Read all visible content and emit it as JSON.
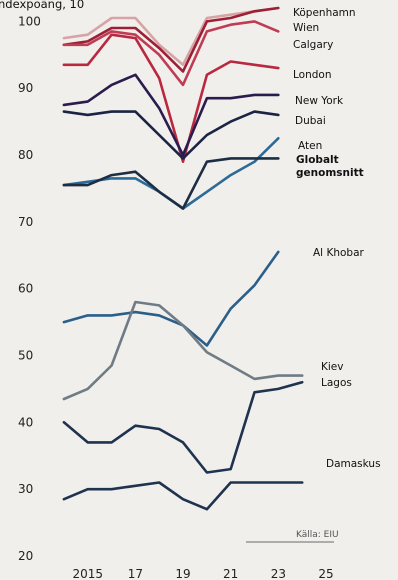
{
  "header_fragment": "ndexpoäng, 10",
  "source": "Källa: EIU",
  "chart_data": {
    "type": "line",
    "ylabel": "ndexpoäng, 10",
    "ylim": [
      20,
      102
    ],
    "xlim": [
      2013.5,
      2025
    ],
    "yticks": [
      20,
      30,
      40,
      50,
      60,
      70,
      80,
      90,
      100
    ],
    "xticks": [
      2015,
      2017,
      2019,
      2021,
      2023,
      2025
    ],
    "xtick_labels": [
      "2015",
      "17",
      "19",
      "21",
      "23",
      "25"
    ],
    "grid": false,
    "x": [
      2014,
      2015,
      2016,
      2017,
      2018,
      2019,
      2020,
      2021,
      2022,
      2023,
      2024
    ],
    "series": [
      {
        "name": "Köpenhamn",
        "color": "#d7a4a6",
        "values": [
          97.5,
          98,
          100.5,
          100.5,
          96.5,
          93.5,
          100.5,
          101,
          101.5,
          102,
          null
        ]
      },
      {
        "name": "Wien",
        "color": "#9c1f36",
        "values": [
          96.5,
          97,
          99,
          99,
          96,
          92.5,
          100,
          100.5,
          101.5,
          102,
          null
        ]
      },
      {
        "name": "Calgary",
        "color": "#c03c54",
        "values": [
          96.5,
          96.5,
          98.5,
          98,
          95,
          90.5,
          98.5,
          99.5,
          100,
          98.5,
          null
        ]
      },
      {
        "name": "London",
        "color": "#b9283f",
        "values": [
          93.5,
          93.5,
          98,
          97.5,
          91.5,
          79,
          92,
          94,
          93.5,
          93,
          null
        ]
      },
      {
        "name": "New York",
        "color": "#2b1b4e",
        "values": [
          87.5,
          88,
          90.5,
          92,
          87,
          80,
          88.5,
          88.5,
          89,
          89,
          null
        ]
      },
      {
        "name": "Dubai",
        "color": "#1b2444",
        "values": [
          86.5,
          86,
          86.5,
          86.5,
          83,
          79.5,
          83,
          85,
          86.5,
          86,
          null
        ]
      },
      {
        "name": "Aten",
        "color": "#2c6b97",
        "values": [
          75.5,
          76,
          76.5,
          76.5,
          74.5,
          72,
          74.5,
          77,
          79,
          82.5,
          null
        ]
      },
      {
        "name": "Globalt genomsnitt",
        "color": "#1d2e44",
        "values": [
          75.5,
          75.5,
          77,
          77.5,
          74.5,
          72,
          79,
          79.5,
          79.5,
          79.5,
          null
        ]
      },
      {
        "name": "Al Khobar",
        "color": "#2a5f8a",
        "values": [
          55,
          56,
          56,
          56.5,
          56,
          54.5,
          51.5,
          57,
          60.5,
          65.5,
          null
        ]
      },
      {
        "name": "Kiev",
        "color": "#6f7c85",
        "values": [
          43.5,
          45,
          48.5,
          58,
          57.5,
          54.5,
          50.5,
          48.5,
          46.5,
          47,
          47
        ]
      },
      {
        "name": "Lagos",
        "color": "#1f334f",
        "values": [
          40,
          37,
          37,
          39.5,
          39,
          37,
          32.5,
          33,
          44.5,
          45,
          46
        ]
      },
      {
        "name": "Damaskus",
        "color": "#1f334f",
        "values": [
          28.5,
          30,
          30,
          30.5,
          31,
          28.5,
          27,
          31,
          31,
          31,
          31
        ]
      }
    ]
  }
}
